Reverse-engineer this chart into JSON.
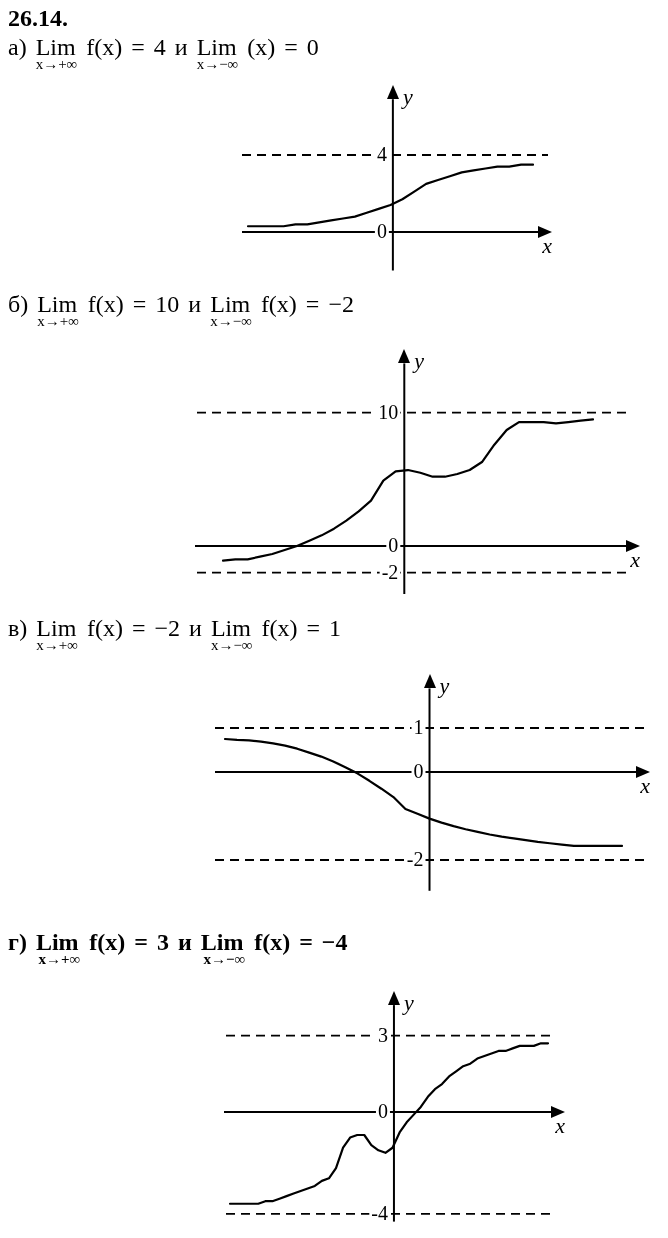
{
  "chart_data": [
    {
      "type": "line",
      "title": "26.14.\nа) Lim$_{x→+∞}$ f(x) = 4 и Lim$_{x→−∞}$ (x) = 0",
      "xlabel": "x",
      "ylabel": "y",
      "categories": [
        null,
        null,
        null,
        null,
        null,
        null,
        null,
        null,
        null,
        null,
        null,
        null,
        null,
        null,
        null,
        null,
        null,
        null,
        null,
        null,
        null,
        null,
        null,
        null,
        null
      ],
      "values": [
        0.3,
        0.3,
        0.3,
        0.3,
        0.4,
        0.4,
        0.5,
        0.6,
        0.7,
        0.8,
        1.0,
        1.2,
        1.4,
        1.7,
        2.1,
        2.5,
        2.7,
        2.9,
        3.1,
        3.2,
        3.3,
        3.4,
        3.4,
        3.5,
        3.5
      ],
      "color": "#000000",
      "ylim": [
        -2,
        6.9
      ],
      "yticks": [
        0,
        4
      ],
      "ref_lines": [
        {
          "axis": "y",
          "value": 4,
          "line_style": "dashed",
          "color": "#000000"
        }
      ],
      "tick_labels": "y",
      "marker": "none"
    },
    {
      "type": "line",
      "title": "б) Lim$_{x→+∞}$ f(x) = 10 и Lim$_{x→−∞}$ f(x) = −2",
      "xlabel": "x",
      "ylabel": "y",
      "categories": [
        null,
        null,
        null,
        null,
        null,
        null,
        null,
        null,
        null,
        null,
        null,
        null,
        null,
        null,
        null,
        null,
        null,
        null,
        null,
        null,
        null,
        null,
        null,
        null,
        null,
        null,
        null,
        null,
        null,
        null,
        null
      ],
      "values": [
        -1.1,
        -1.0,
        -1.0,
        -0.8,
        -0.6,
        -0.3,
        0.0,
        0.4,
        0.8,
        1.3,
        1.9,
        2.6,
        3.4,
        4.9,
        5.6,
        5.7,
        5.5,
        5.2,
        5.2,
        5.4,
        5.7,
        6.3,
        7.6,
        8.7,
        9.3,
        9.3,
        9.3,
        9.2,
        9.3,
        9.4,
        9.5
      ],
      "color": "#000000",
      "ylim": [
        -3.6,
        13.7
      ],
      "yticks": [
        -2,
        0,
        10
      ],
      "ref_lines": [
        {
          "axis": "y",
          "value": 10,
          "line_style": "dashed",
          "color": "#000000"
        },
        {
          "axis": "y",
          "value": -2,
          "line_style": "dashed",
          "color": "#000000"
        }
      ],
      "tick_labels": "y",
      "marker": "none"
    },
    {
      "type": "line",
      "title": "в) Lim$_{x→+∞}$ f(x) = −2 и Lim$_{x→−∞}$ f(x) = 1",
      "xlabel": "x",
      "ylabel": "y",
      "categories": [
        null,
        null,
        null,
        null,
        null,
        null,
        null,
        null,
        null,
        null,
        null,
        null,
        null,
        null,
        null,
        null,
        null,
        null,
        null,
        null,
        null,
        null,
        null,
        null,
        null,
        null,
        null,
        null,
        null,
        null,
        null,
        null,
        null,
        null
      ],
      "values": [
        0.75,
        0.73,
        0.72,
        0.69,
        0.65,
        0.6,
        0.53,
        0.44,
        0.35,
        0.24,
        0.11,
        -0.03,
        -0.2,
        -0.38,
        -0.57,
        -0.84,
        -0.95,
        -1.06,
        -1.15,
        -1.23,
        -1.3,
        -1.36,
        -1.42,
        -1.47,
        -1.51,
        -1.55,
        -1.59,
        -1.62,
        -1.65,
        -1.68,
        -1.68,
        -1.68,
        -1.68,
        -1.68
      ],
      "color": "#000000",
      "ylim": [
        -2.7,
        1.9
      ],
      "yticks": [
        -2,
        0,
        1
      ],
      "ref_lines": [
        {
          "axis": "y",
          "value": 1,
          "line_style": "dashed",
          "color": "#000000"
        },
        {
          "axis": "y",
          "value": -2,
          "line_style": "dashed",
          "color": "#000000"
        }
      ],
      "tick_labels": "y",
      "marker": "none"
    },
    {
      "type": "line",
      "title": "г) Lim$_{x→+∞}$ f(x) = 3 и Lim$_{x→−∞}$ f(x) = −4",
      "xlabel": "x",
      "ylabel": "y",
      "categories": [
        null,
        null,
        null,
        null,
        null,
        null,
        null,
        null,
        null,
        null,
        null,
        null,
        null,
        null,
        null,
        null,
        null,
        null,
        null,
        null,
        null,
        null,
        null,
        null,
        null,
        null,
        null,
        null,
        null,
        null,
        null,
        null,
        null,
        null,
        null,
        null,
        null,
        null,
        null,
        null,
        null,
        null,
        null,
        null,
        null,
        null
      ],
      "values": [
        -3.6,
        -3.6,
        -3.6,
        -3.6,
        -3.6,
        -3.5,
        -3.5,
        -3.4,
        -3.3,
        -3.2,
        -3.1,
        -3.0,
        -2.9,
        -2.7,
        -2.6,
        -2.2,
        -1.4,
        -1.0,
        -0.9,
        -0.9,
        -1.3,
        -1.5,
        -1.6,
        -1.4,
        -0.8,
        -0.4,
        -0.1,
        0.2,
        0.6,
        0.9,
        1.1,
        1.4,
        1.6,
        1.8,
        1.9,
        2.1,
        2.2,
        2.3,
        2.4,
        2.4,
        2.5,
        2.6,
        2.6,
        2.6,
        2.7,
        2.7
      ],
      "color": "#000000",
      "ylim": [
        -4.3,
        4.2
      ],
      "yticks": [
        -4,
        0,
        3
      ],
      "ref_lines": [
        {
          "axis": "y",
          "value": 3,
          "line_style": "dashed",
          "color": "#000000"
        },
        {
          "axis": "y",
          "value": -4,
          "line_style": "dashed",
          "color": "#000000"
        }
      ],
      "tick_labels": "y",
      "marker": "none"
    }
  ]
}
